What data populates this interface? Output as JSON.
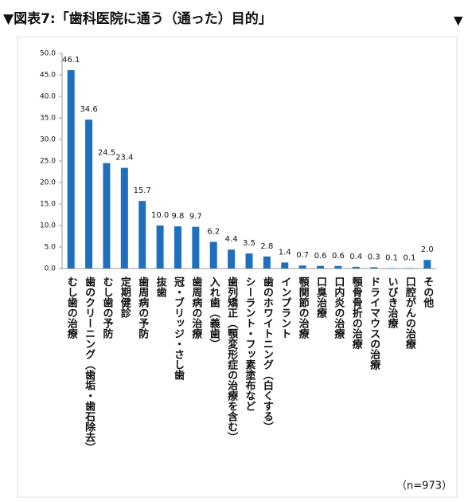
{
  "chart_data": {
    "type": "bar",
    "title": "▼図表7:「歯科医院に通う（通った）目的」",
    "side_marker": "▼",
    "note": "（n=973）",
    "categories": [
      "むし歯の治療",
      "歯のクリーニング（歯垢・歯石除去）",
      "むし歯の予防",
      "定期健診",
      "歯周病の予防",
      "抜歯",
      "冠・ブリッジ・さし歯",
      "歯周病の治療",
      "入れ歯（義歯）",
      "歯列矯正（顎変形症の治療を含む）",
      "シーラント・フッ素塗布など",
      "歯のホワイトニング（白くする）",
      "インプラント",
      "顎関節の治療",
      "口臭治療",
      "口内炎の治療",
      "顎骨骨折の治療",
      "ドライマウスの治療",
      "いびき治療",
      "口腔がんの治療",
      "その他"
    ],
    "values": [
      46.1,
      34.6,
      24.5,
      23.4,
      15.7,
      10.0,
      9.8,
      9.7,
      6.2,
      4.4,
      3.5,
      2.8,
      1.4,
      0.7,
      0.6,
      0.6,
      0.4,
      0.3,
      0.1,
      0.1,
      2.0
    ],
    "value_labels": [
      "46.1",
      "34.6",
      "24.5",
      "23.4",
      "15.7",
      "10.0",
      "9.8",
      "9.7",
      "6.2",
      "4.4",
      "3.5",
      "2.8",
      "1.4",
      "0.7",
      "0.6",
      "0.6",
      "0.4",
      "0.3",
      "0.1",
      "0.1",
      "2.0"
    ],
    "color": "#1f6fbf",
    "ylim": [
      0,
      50
    ],
    "yticks": [
      {
        "value": 0,
        "label": "0.0"
      },
      {
        "value": 5,
        "label": "5.0"
      },
      {
        "value": 10,
        "label": "10.0"
      },
      {
        "value": 15,
        "label": "15.0"
      },
      {
        "value": 20,
        "label": "20.0"
      },
      {
        "value": 25,
        "label": "25.0"
      },
      {
        "value": 30,
        "label": "30.0"
      },
      {
        "value": 35,
        "label": "35.0"
      },
      {
        "value": 40,
        "label": "40.0"
      },
      {
        "value": 45,
        "label": "45.0"
      },
      {
        "value": 50,
        "label": "50.0"
      }
    ],
    "grid": false
  }
}
